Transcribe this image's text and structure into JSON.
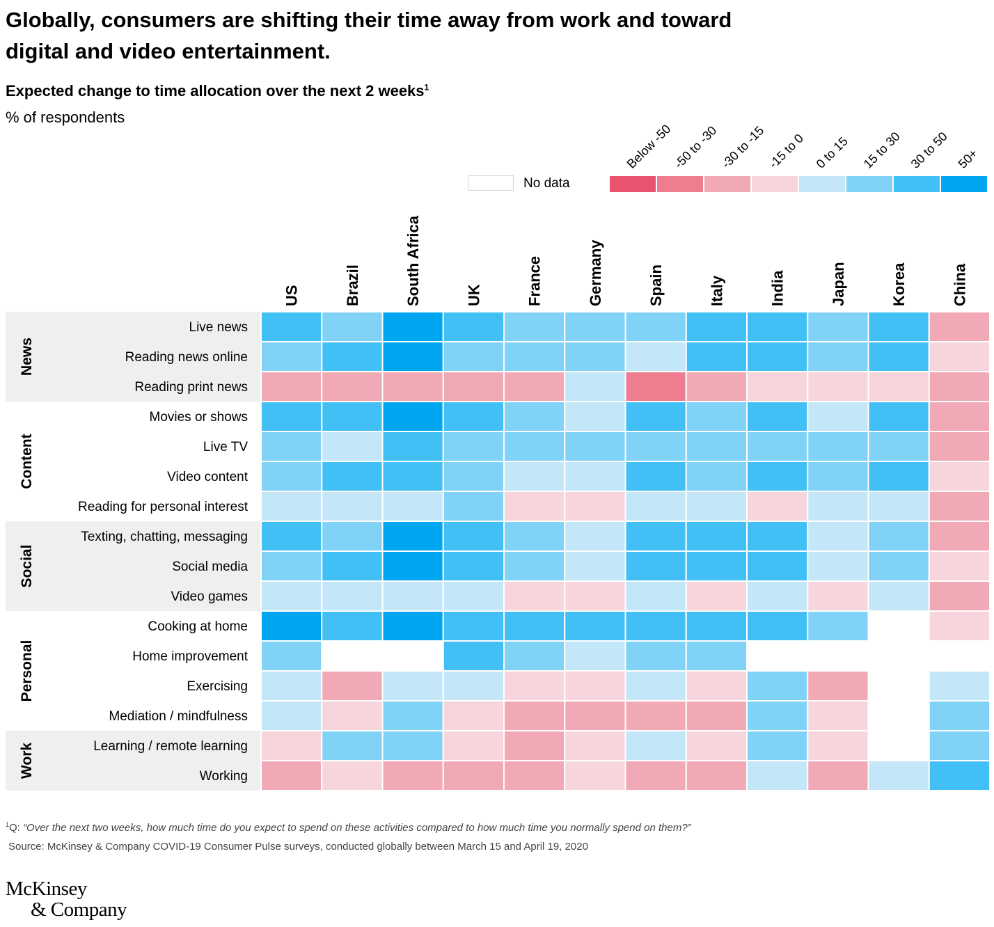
{
  "title": "Globally, consumers are shifting their time away from work and toward digital and video entertainment.",
  "subtitle": "Expected change to time allocation over the next 2 weeks",
  "subtitle_footnote_mark": "1",
  "unit_label": "% of respondents",
  "legend": {
    "no_data_label": "No data",
    "no_data_color": "#ffffff",
    "bins": [
      {
        "label": "Below -50",
        "color": "#e8536f"
      },
      {
        "label": "-50 to -30",
        "color": "#ee7e8f"
      },
      {
        "label": "-30 to -15",
        "color": "#f2a9b6"
      },
      {
        "label": "-15 to 0",
        "color": "#f7d5dc"
      },
      {
        "label": "0 to 15",
        "color": "#c3e7f8"
      },
      {
        "label": "15 to 30",
        "color": "#80d2f6"
      },
      {
        "label": "30 to 50",
        "color": "#42bff4"
      },
      {
        "label": "50+",
        "color": "#00a7f0"
      }
    ]
  },
  "chart_data": {
    "type": "heatmap",
    "title": "Expected change to time allocation over the next 2 weeks",
    "value_encoding": "legend bin index: 0 = Below -50 ... 7 = 50+; null = No data",
    "columns": [
      "US",
      "Brazil",
      "South Africa",
      "UK",
      "France",
      "Germany",
      "Spain",
      "Italy",
      "India",
      "Japan",
      "Korea",
      "China"
    ],
    "groups": [
      {
        "name": "News",
        "rows": [
          "Live news",
          "Reading news online",
          "Reading print news"
        ]
      },
      {
        "name": "Content",
        "rows": [
          "Movies or shows",
          "Live TV",
          "Video content",
          "Reading for personal interest"
        ]
      },
      {
        "name": "Social",
        "rows": [
          "Texting, chatting, messaging",
          "Social media",
          "Video games"
        ]
      },
      {
        "name": "Personal",
        "rows": [
          "Cooking at home",
          "Home improvement",
          "Exercising",
          "Mediation / mindfulness"
        ]
      },
      {
        "name": "Work",
        "rows": [
          "Learning / remote learning",
          "Working"
        ]
      }
    ],
    "values": [
      [
        6,
        5,
        7,
        6,
        5,
        5,
        5,
        6,
        6,
        5,
        6,
        2
      ],
      [
        5,
        6,
        7,
        5,
        5,
        5,
        4,
        6,
        6,
        5,
        6,
        3
      ],
      [
        2,
        2,
        2,
        2,
        2,
        4,
        1,
        2,
        3,
        3,
        3,
        2
      ],
      [
        6,
        6,
        7,
        6,
        5,
        4,
        6,
        5,
        6,
        4,
        6,
        2
      ],
      [
        5,
        4,
        6,
        5,
        5,
        5,
        5,
        5,
        5,
        5,
        5,
        2
      ],
      [
        5,
        6,
        6,
        5,
        4,
        4,
        6,
        5,
        6,
        5,
        6,
        3
      ],
      [
        4,
        4,
        4,
        5,
        3,
        3,
        4,
        4,
        3,
        4,
        4,
        2
      ],
      [
        6,
        5,
        7,
        6,
        5,
        4,
        6,
        6,
        6,
        4,
        5,
        2
      ],
      [
        5,
        6,
        7,
        6,
        5,
        4,
        6,
        6,
        6,
        4,
        5,
        3
      ],
      [
        4,
        4,
        4,
        4,
        3,
        3,
        4,
        3,
        4,
        3,
        4,
        2
      ],
      [
        7,
        6,
        7,
        6,
        6,
        6,
        6,
        6,
        6,
        5,
        null,
        3
      ],
      [
        5,
        null,
        null,
        6,
        5,
        4,
        5,
        5,
        null,
        null,
        null,
        null
      ],
      [
        4,
        2,
        4,
        4,
        3,
        3,
        4,
        3,
        5,
        2,
        null,
        4
      ],
      [
        4,
        3,
        5,
        3,
        2,
        2,
        2,
        2,
        5,
        3,
        null,
        5
      ],
      [
        3,
        5,
        5,
        3,
        2,
        3,
        4,
        3,
        5,
        3,
        null,
        5
      ],
      [
        2,
        3,
        2,
        2,
        2,
        3,
        2,
        2,
        4,
        2,
        4,
        6
      ]
    ]
  },
  "footnote": {
    "marker": "1",
    "prefix": "Q: ",
    "text": "“Over the next two weeks, how much time do you expect to spend on these activities compared to how much time you normally spend on them?”"
  },
  "source": "Source: McKinsey & Company COVID-19 Consumer Pulse surveys, conducted globally between March 15 and April 19, 2020",
  "logo": {
    "line1": "McKinsey",
    "line2": "& Company"
  }
}
